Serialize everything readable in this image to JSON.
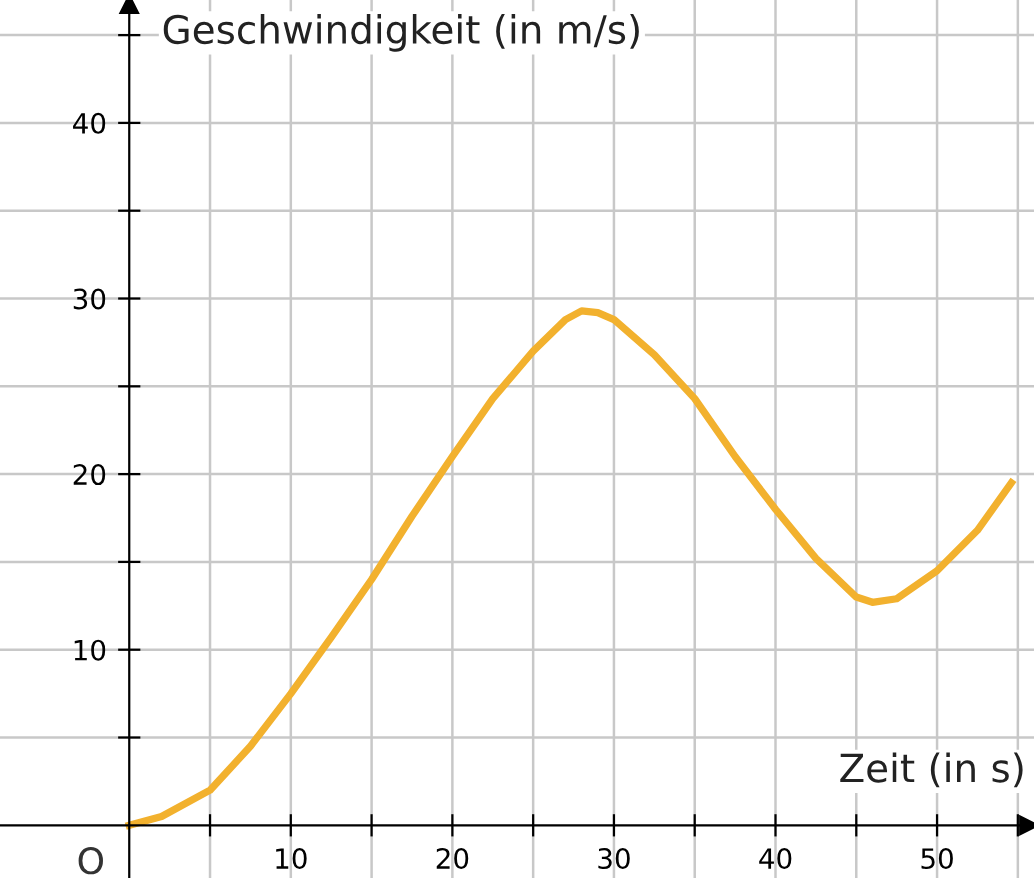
{
  "chart_data": {
    "type": "line",
    "xlabel": "Zeit (in s)",
    "ylabel": "Geschwindigkeit (in m/s)",
    "annotations": [
      {
        "text": "O",
        "x": 0,
        "y": 0
      }
    ],
    "x": [
      0,
      2,
      5,
      7.5,
      10,
      12.5,
      15,
      17.5,
      20,
      22.5,
      25,
      27,
      28,
      29,
      30,
      32.5,
      35,
      37.5,
      40,
      42.5,
      45,
      46,
      47.5,
      50,
      52.5,
      54.6
    ],
    "series": [
      {
        "color": "#f2b12e",
        "values": [
          0,
          0.5,
          2,
          4.5,
          7.5,
          10.7,
          14,
          17.6,
          21,
          24.3,
          27,
          28.8,
          29.3,
          29.2,
          28.8,
          26.8,
          24.3,
          21,
          18,
          15.2,
          13,
          12.7,
          12.9,
          14.5,
          16.8,
          19.5
        ]
      }
    ],
    "xlim": [
      -8,
      56
    ],
    "ylim": [
      -3,
      47
    ],
    "xticks": [
      {
        "value": 5,
        "label": null
      },
      10,
      {
        "value": 15,
        "label": null
      },
      20,
      {
        "value": 25,
        "label": null
      },
      30,
      {
        "value": 35,
        "label": null
      },
      40,
      {
        "value": 45,
        "label": null
      },
      50,
      {
        "value": 55,
        "label": null
      }
    ],
    "yticks": [
      {
        "value": 5,
        "label": null
      },
      10,
      {
        "value": 15,
        "label": null
      },
      20,
      {
        "value": 25,
        "label": null
      },
      30,
      {
        "value": 35,
        "label": null
      },
      40,
      {
        "value": 45,
        "label": null
      }
    ],
    "grid": true,
    "marker": "none",
    "line_style": "solid",
    "legend": false
  }
}
